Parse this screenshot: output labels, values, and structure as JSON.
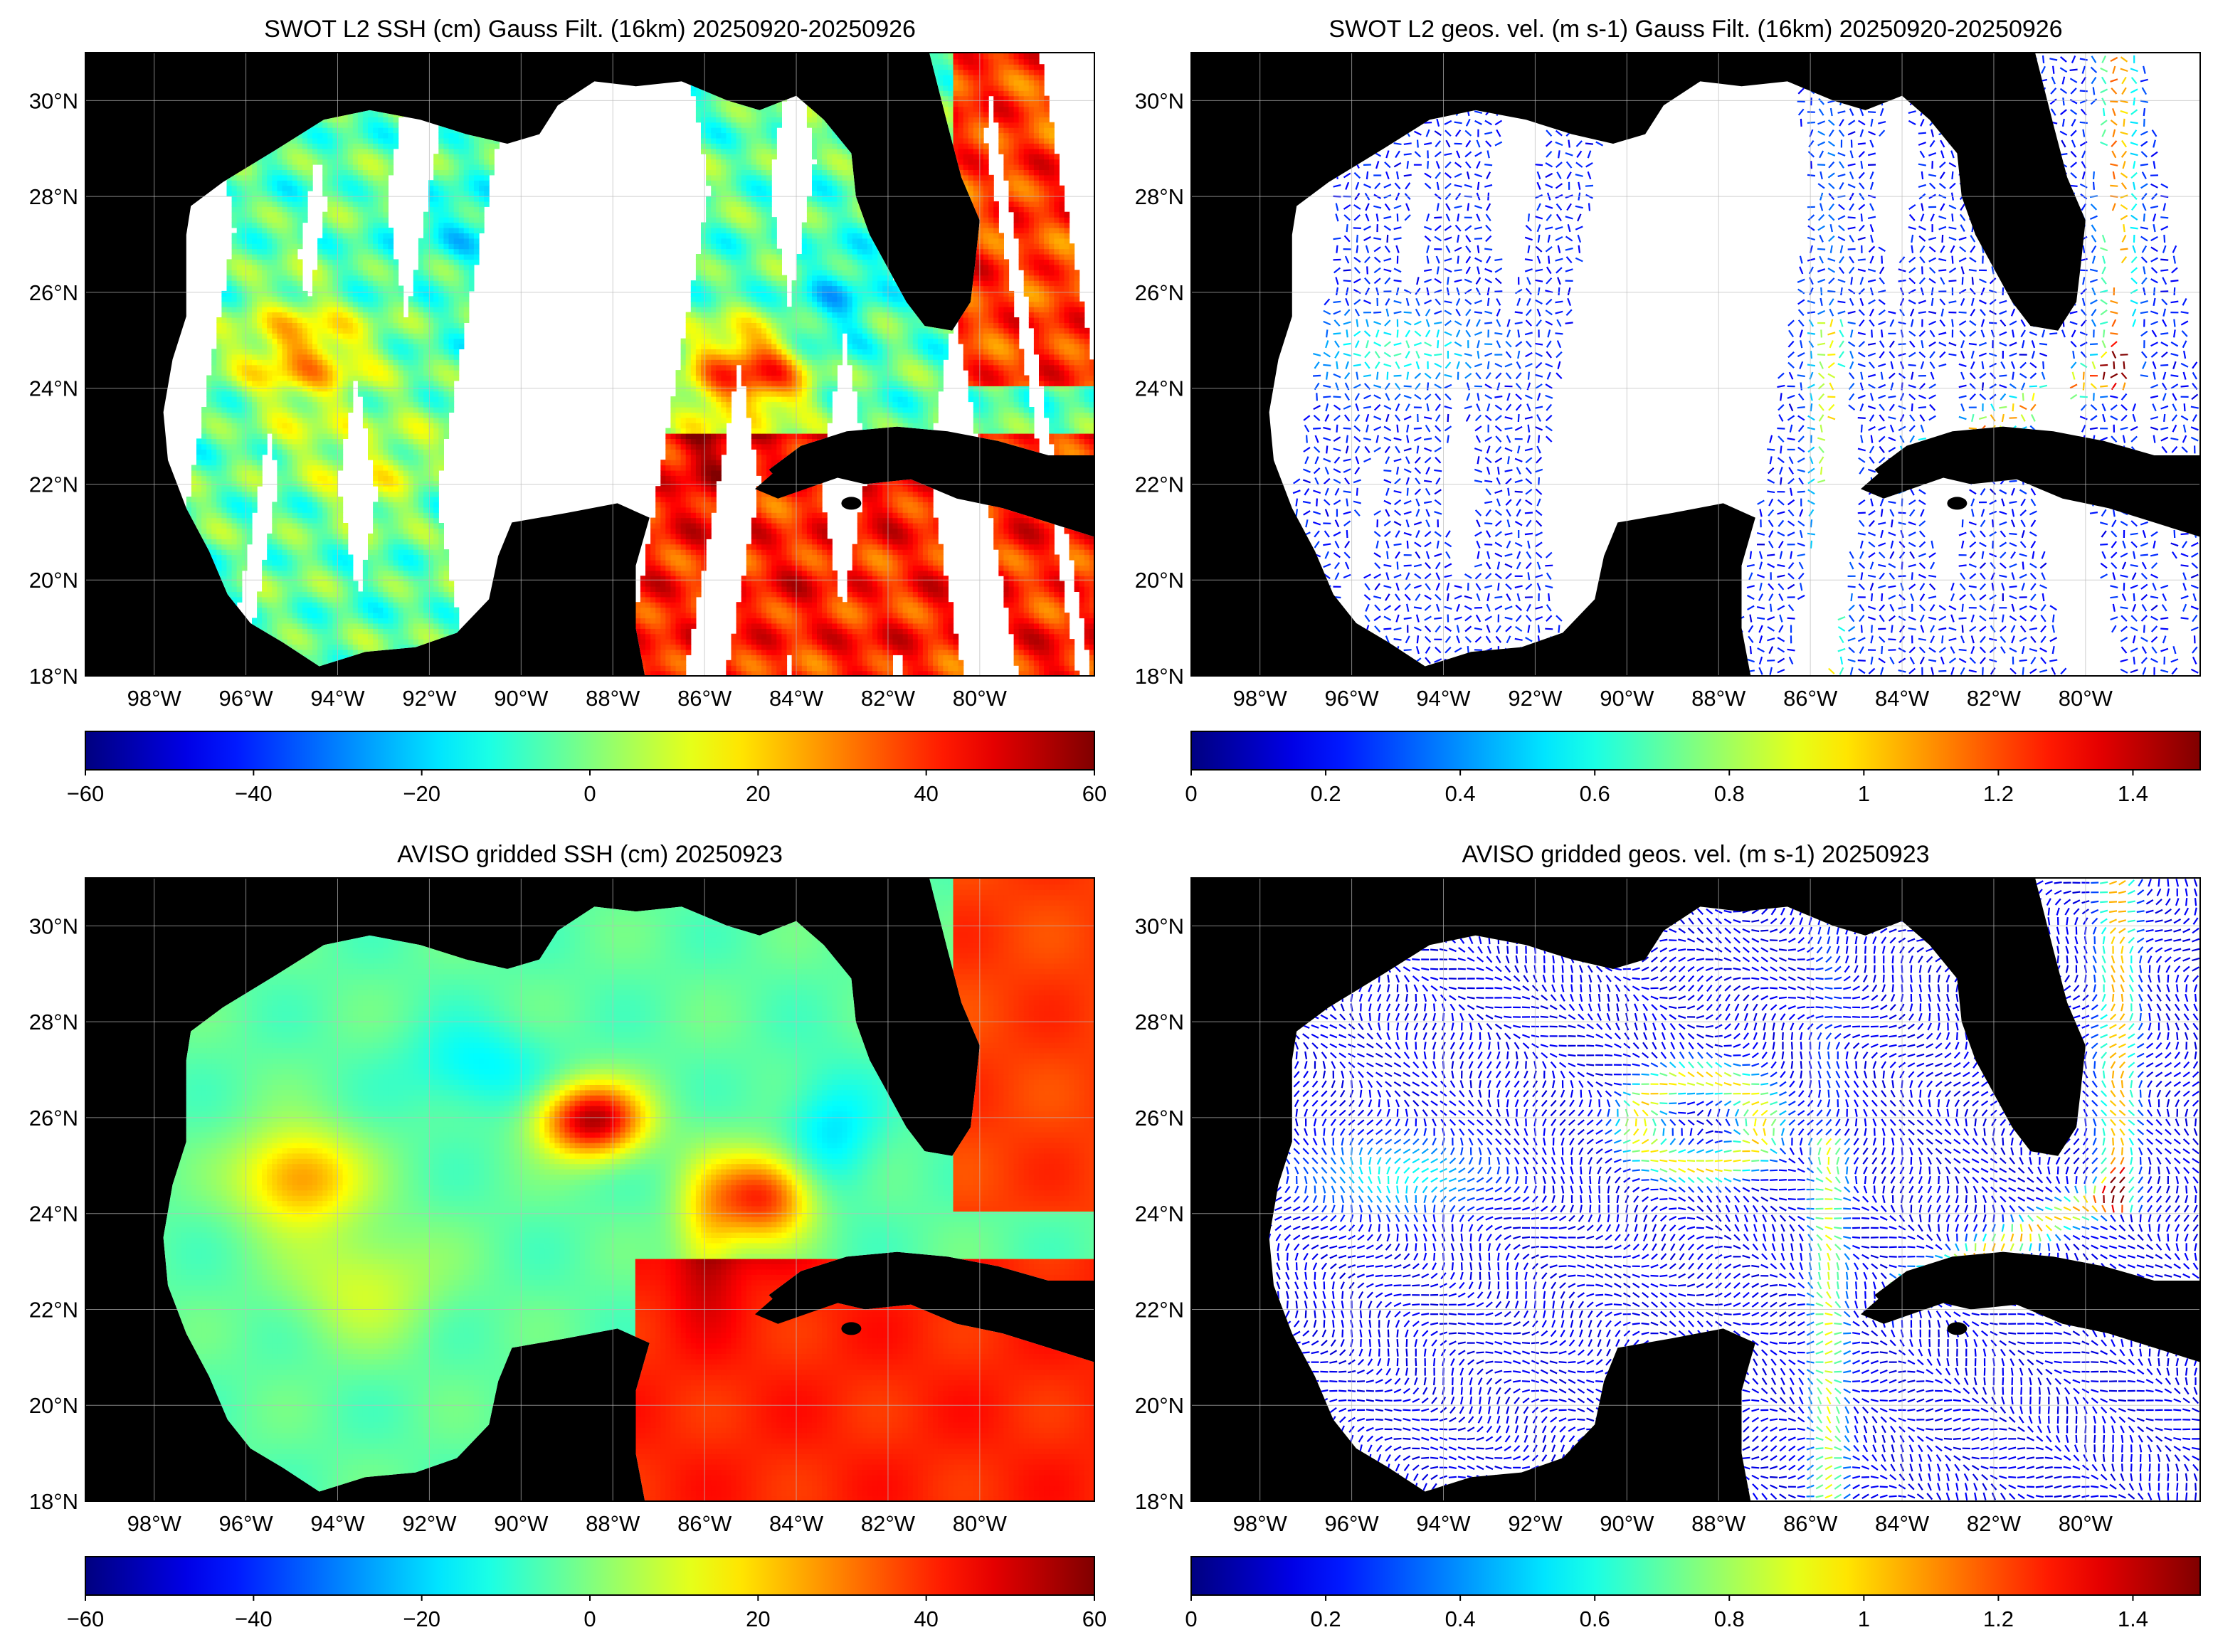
{
  "panels": [
    {
      "title": "SWOT L2 SSH (cm) Gauss Filt. (16km) 20250920-20250926",
      "kind": "swath-ssh",
      "colorbar": {
        "min": -60,
        "max": 60,
        "ticks": [
          "−60",
          "−40",
          "−20",
          "0",
          "20",
          "40",
          "60"
        ]
      }
    },
    {
      "title": "SWOT L2 geos. vel. (m s-1) Gauss Filt. (16km) 20250920-20250926",
      "kind": "swath-vel",
      "colorbar": {
        "min": 0,
        "max": 1.5,
        "ticks": [
          "0",
          "0.2",
          "0.4",
          "0.6",
          "0.8",
          "1",
          "1.2",
          "1.4"
        ]
      }
    },
    {
      "title": "AVISO gridded SSH (cm) 20250923",
      "kind": "grid-ssh",
      "colorbar": {
        "min": -60,
        "max": 60,
        "ticks": [
          "−60",
          "−40",
          "−20",
          "0",
          "20",
          "40",
          "60"
        ]
      }
    },
    {
      "title": "AVISO gridded geos. vel. (m s-1)  20250923",
      "kind": "grid-vel",
      "colorbar": {
        "min": 0,
        "max": 1.5,
        "ticks": [
          "0",
          "0.2",
          "0.4",
          "0.6",
          "0.8",
          "1",
          "1.2",
          "1.4"
        ]
      }
    }
  ],
  "map": {
    "lon_range": [
      -99.5,
      -77.5
    ],
    "lat_range": [
      18,
      31
    ],
    "lat_ticks": [
      {
        "value": 30,
        "label": "30°N"
      },
      {
        "value": 28,
        "label": "28°N"
      },
      {
        "value": 26,
        "label": "26°N"
      },
      {
        "value": 24,
        "label": "24°N"
      },
      {
        "value": 22,
        "label": "22°N"
      },
      {
        "value": 20,
        "label": "20°N"
      },
      {
        "value": 18,
        "label": "18°N"
      }
    ],
    "lon_ticks": [
      {
        "value": -98,
        "label": "98°W"
      },
      {
        "value": -96,
        "label": "96°W"
      },
      {
        "value": -94,
        "label": "94°W"
      },
      {
        "value": -92,
        "label": "92°W"
      },
      {
        "value": -90,
        "label": "90°W"
      },
      {
        "value": -88,
        "label": "88°W"
      },
      {
        "value": -86,
        "label": "86°W"
      },
      {
        "value": -84,
        "label": "84°W"
      },
      {
        "value": -82,
        "label": "82°W"
      },
      {
        "value": -80,
        "label": "80°W"
      }
    ],
    "land_color": "#000000",
    "no_data_color": "#ffffff",
    "grid_color": "#bbbbbb",
    "colormap": "jet"
  }
}
